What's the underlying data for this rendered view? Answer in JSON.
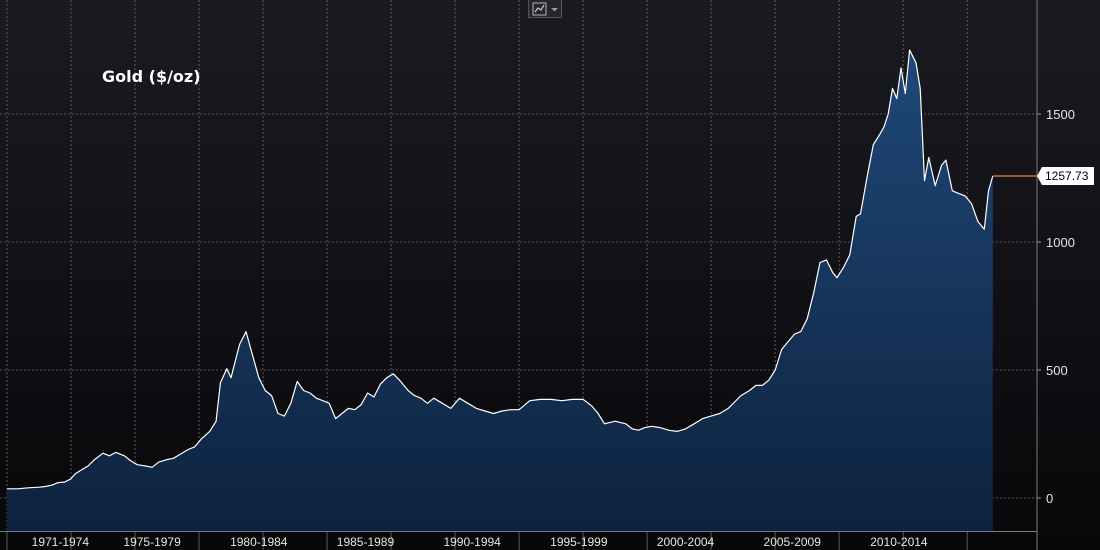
{
  "chart_data": {
    "type": "area",
    "title": "Gold ($/oz)",
    "xlabel": "",
    "ylabel": "",
    "ylim": [
      -120,
      1945
    ],
    "yticks": [
      0,
      500,
      1000,
      1500
    ],
    "y_grid": [
      0,
      500,
      1000,
      1500
    ],
    "x_grid_years": [
      1970,
      1973,
      1976,
      1979,
      1982,
      1985,
      1988,
      1991,
      1994,
      1997,
      2000,
      2003,
      2006,
      2009,
      2012,
      2015
    ],
    "xlim": [
      1970.0,
      2017.1
    ],
    "x_tick_labels": [
      {
        "label": "1971-1974",
        "x": 1972.5
      },
      {
        "label": "1975-1979",
        "x": 1976.8
      },
      {
        "label": "1980-1984",
        "x": 1981.8
      },
      {
        "label": "1985-1989",
        "x": 1986.8
      },
      {
        "label": "1990-1994",
        "x": 1991.8
      },
      {
        "label": "1995-1999",
        "x": 1996.8
      },
      {
        "label": "2000-2004",
        "x": 2001.8
      },
      {
        "label": "2005-2009",
        "x": 2006.8
      },
      {
        "label": "2010-2014",
        "x": 2011.8
      }
    ],
    "series": [
      {
        "x": [
          1970.0,
          1970.5,
          1971.0,
          1971.5,
          1971.8,
          1972.1,
          1972.4,
          1972.7,
          1973.0,
          1973.2,
          1973.5,
          1973.8,
          1974.1,
          1974.5,
          1974.8,
          1975.1,
          1975.5,
          1975.8,
          1976.1,
          1976.5,
          1976.8,
          1977.1,
          1977.5,
          1977.8,
          1978.1,
          1978.5,
          1978.8,
          1979.1,
          1979.5,
          1979.8,
          1980.0,
          1980.3,
          1980.5,
          1980.9,
          1981.2,
          1981.5,
          1981.8,
          1982.1,
          1982.4,
          1982.7,
          1983.0,
          1983.3,
          1983.6,
          1983.9,
          1984.2,
          1984.5,
          1984.8,
          1985.1,
          1985.4,
          1985.7,
          1986.0,
          1986.3,
          1986.6,
          1986.9,
          1987.2,
          1987.5,
          1987.8,
          1988.1,
          1988.4,
          1988.8,
          1989.1,
          1989.4,
          1989.7,
          1990.0,
          1990.4,
          1990.8,
          1991.2,
          1991.6,
          1992.0,
          1992.4,
          1992.8,
          1993.2,
          1993.6,
          1994.0,
          1994.5,
          1995.0,
          1995.5,
          1996.0,
          1996.5,
          1997.0,
          1997.4,
          1997.7,
          1998.0,
          1998.5,
          1999.0,
          1999.3,
          1999.6,
          1999.9,
          2000.2,
          2000.6,
          2001.0,
          2001.4,
          2001.8,
          2002.2,
          2002.6,
          2003.0,
          2003.4,
          2003.8,
          2004.1,
          2004.4,
          2004.8,
          2005.1,
          2005.4,
          2005.7,
          2006.0,
          2006.3,
          2006.6,
          2006.9,
          2007.2,
          2007.5,
          2007.8,
          2008.1,
          2008.4,
          2008.7,
          2008.9,
          2009.2,
          2009.5,
          2009.8,
          2010.0,
          2010.3,
          2010.6,
          2010.9,
          2011.1,
          2011.3,
          2011.5,
          2011.7,
          2011.9,
          2012.1,
          2012.3,
          2012.6,
          2012.8,
          2013.0,
          2013.2,
          2013.5,
          2013.8,
          2014.0,
          2014.3,
          2014.6,
          2014.9,
          2015.2,
          2015.5,
          2015.8,
          2016.0,
          2016.2,
          2017.0
        ],
        "values": [
          36,
          36,
          40,
          42,
          45,
          50,
          60,
          62,
          75,
          95,
          110,
          125,
          150,
          175,
          165,
          178,
          165,
          145,
          130,
          125,
          120,
          140,
          150,
          155,
          170,
          190,
          200,
          230,
          260,
          300,
          450,
          505,
          470,
          600,
          650,
          560,
          470,
          420,
          400,
          330,
          320,
          370,
          455,
          420,
          410,
          390,
          380,
          370,
          310,
          330,
          350,
          345,
          365,
          410,
          395,
          445,
          470,
          485,
          460,
          420,
          400,
          390,
          370,
          390,
          370,
          350,
          390,
          370,
          350,
          340,
          330,
          340,
          345,
          345,
          380,
          385,
          385,
          380,
          385,
          385,
          360,
          330,
          290,
          300,
          290,
          270,
          265,
          275,
          280,
          275,
          265,
          260,
          270,
          290,
          310,
          320,
          330,
          350,
          375,
          400,
          420,
          440,
          440,
          460,
          500,
          580,
          610,
          640,
          650,
          700,
          800,
          920,
          930,
          880,
          860,
          900,
          950,
          1100,
          1110,
          1250,
          1380,
          1420,
          1450,
          1500,
          1600,
          1560,
          1680,
          1580,
          1750,
          1700,
          1600,
          1240,
          1330,
          1220,
          1300,
          1320,
          1200,
          1190,
          1180,
          1150,
          1080,
          1050,
          1200,
          1257.73,
          1257.73
        ]
      }
    ],
    "last_value_label": "1257.73",
    "colors": {
      "background_top": "#1a1a22",
      "background_bottom": "#08080a",
      "area_top": "#1f4878",
      "area_bottom": "#0d223e",
      "line": "#ffffff",
      "last_segment": "#e08a3a",
      "grid": "#6a6a6a"
    },
    "grid": true
  },
  "toolbar": {
    "chart_type_icon": "line-chart-icon",
    "dropdown_icon": "caret-down-icon"
  }
}
